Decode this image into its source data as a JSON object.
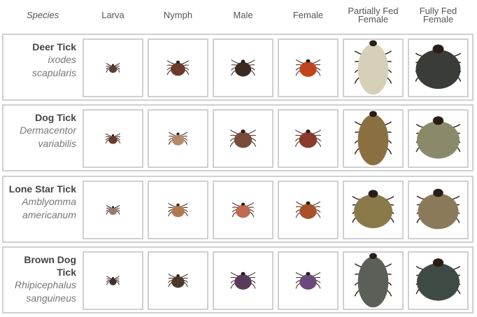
{
  "headers": [
    "Species",
    "Larva",
    "Nymph",
    "Male",
    "Female",
    "Partially Fed Female",
    "Fully Fed Female"
  ],
  "rows": [
    {
      "common": "Deer Tick",
      "scientific": "ixodes scapularis",
      "ticks": [
        {
          "size": 0.12,
          "body": "#5a4030"
        },
        {
          "size": 0.28,
          "body": "#6b3a2a"
        },
        {
          "size": 0.32,
          "body": "#3a2a22"
        },
        {
          "size": 0.34,
          "body": "#c0451f"
        },
        {
          "size": 0.9,
          "body": "#d6d0b8",
          "elong": true
        },
        {
          "size": 1.0,
          "body": "#3a3d37"
        }
      ]
    },
    {
      "common": "Dog Tick",
      "scientific": "Dermacentor variabilis",
      "ticks": [
        {
          "size": 0.14,
          "body": "#6b3a2a"
        },
        {
          "size": 0.22,
          "body": "#b58a6a"
        },
        {
          "size": 0.36,
          "body": "#7a4a3a"
        },
        {
          "size": 0.36,
          "body": "#8a3a2a"
        },
        {
          "size": 0.9,
          "body": "#8a7040",
          "elong": true
        },
        {
          "size": 0.95,
          "body": "#8a8a6a"
        }
      ]
    },
    {
      "common": "Lone Star Tick",
      "scientific": "Amblyomma americanum",
      "ticks": [
        {
          "size": 0.12,
          "body": "#9a7a6a"
        },
        {
          "size": 0.24,
          "body": "#b07a50"
        },
        {
          "size": 0.28,
          "body": "#c06a50"
        },
        {
          "size": 0.34,
          "body": "#a8502a"
        },
        {
          "size": 0.85,
          "body": "#8a7a4a"
        },
        {
          "size": 0.9,
          "body": "#8a7a5a"
        }
      ]
    },
    {
      "common": "Brown Dog Tick",
      "scientific": "Rhipicephalus sanguineus",
      "ticks": [
        {
          "size": 0.1,
          "body": "#3a3030"
        },
        {
          "size": 0.24,
          "body": "#4a3a2a"
        },
        {
          "size": 0.34,
          "body": "#5a3a5a"
        },
        {
          "size": 0.34,
          "body": "#6a4a7a"
        },
        {
          "size": 0.9,
          "body": "#5a6058",
          "elong": true
        },
        {
          "size": 0.95,
          "body": "#3e4a44"
        }
      ]
    }
  ],
  "colors": {
    "border": "#d0d0d0",
    "header_text": "#555555",
    "common_text": "#444444",
    "sci_text": "#777777"
  }
}
